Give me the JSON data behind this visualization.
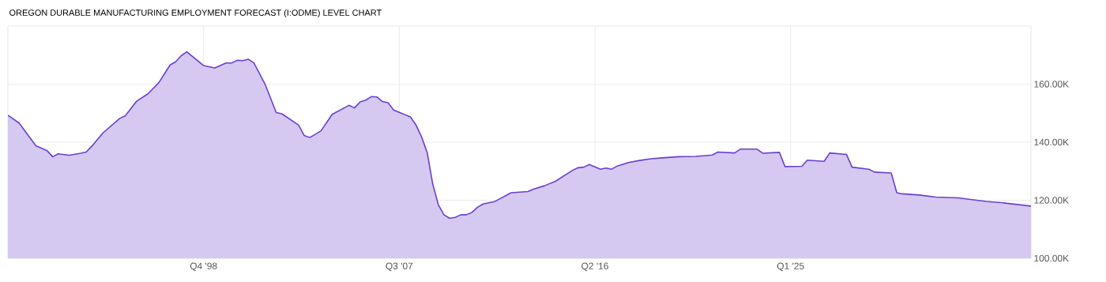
{
  "chart_data": {
    "type": "area",
    "title": "OREGON DURABLE MANUFACTURING EMPLOYMENT FORECAST (I:ODME) LEVEL CHART",
    "x": [
      "1990-01",
      "1990-07",
      "1991-04",
      "1991-10",
      "1992-01",
      "1992-04",
      "1992-10",
      "1993-04",
      "1993-07",
      "1993-10",
      "1994-04",
      "1995-01",
      "1995-04",
      "1995-10",
      "1996-04",
      "1996-10",
      "1997-04",
      "1997-07",
      "1997-10",
      "1998-01",
      "1998-10",
      "1999-04",
      "1999-10",
      "2000-01",
      "2000-04",
      "2000-07",
      "2000-10",
      "2001-01",
      "2001-07",
      "2002-01",
      "2002-04",
      "2003-01",
      "2003-04",
      "2003-07",
      "2004-01",
      "2004-07",
      "2005-04",
      "2005-07",
      "2005-10",
      "2006-01",
      "2006-04",
      "2006-07",
      "2006-10",
      "2007-01",
      "2007-04",
      "2007-07",
      "2008-01",
      "2008-04",
      "2008-07",
      "2008-10",
      "2009-01",
      "2009-04",
      "2009-07",
      "2009-10",
      "2010-01",
      "2010-04",
      "2010-07",
      "2010-10",
      "2011-01",
      "2011-04",
      "2011-10",
      "2012-07",
      "2013-04",
      "2013-07",
      "2014-01",
      "2014-07",
      "2015-01",
      "2015-04",
      "2015-07",
      "2015-10",
      "2016-01",
      "2016-07",
      "2016-10",
      "2017-01",
      "2017-04",
      "2017-10",
      "2018-04",
      "2018-10",
      "2019-04",
      "2020-01",
      "2020-10",
      "2021-07",
      "2021-10",
      "2022-07",
      "2022-10",
      "2023-07",
      "2023-10",
      "2024-07",
      "2024-10",
      "2025-07",
      "2025-10",
      "2026-07",
      "2026-10",
      "2027-07",
      "2027-10",
      "2028-07",
      "2028-10",
      "2029-07",
      "2029-10",
      "2030-01",
      "2030-10",
      "2031-07",
      "2032-07",
      "2033-10",
      "2034-07",
      "2035-10"
    ],
    "series": [
      {
        "color": "#6a3fd0",
        "values": [
          149300,
          146600,
          138800,
          137100,
          135000,
          136000,
          135500,
          136200,
          136600,
          138600,
          143200,
          148200,
          149100,
          154100,
          156600,
          160500,
          166600,
          167700,
          169800,
          171100,
          166400,
          165600,
          167300,
          167300,
          168200,
          168100,
          168600,
          167300,
          160000,
          150200,
          149800,
          145900,
          142300,
          141600,
          143900,
          149600,
          152700,
          151800,
          153900,
          154500,
          155700,
          155600,
          154000,
          153600,
          151100,
          150300,
          148700,
          145900,
          141800,
          136400,
          125500,
          118400,
          115000,
          113800,
          114100,
          115000,
          115000,
          115800,
          117600,
          118700,
          119500,
          122600,
          123000,
          123800,
          125000,
          126600,
          129100,
          130300,
          131200,
          131400,
          132300,
          130700,
          131100,
          130700,
          131800,
          133000,
          133700,
          134300,
          134600,
          135000,
          135100,
          135600,
          136600,
          136300,
          137600,
          137600,
          136200,
          136500,
          131600,
          131700,
          133800,
          133400,
          136300,
          135800,
          131400,
          130700,
          129700,
          129400,
          122600,
          122200,
          121800,
          121100,
          120800,
          119600,
          119100,
          118000
        ]
      }
    ],
    "xlim": [
      "1990-01",
      "2035-10"
    ],
    "xticks": [
      {
        "value": "1998-10",
        "label": "Q4 '98"
      },
      {
        "value": "2007-07",
        "label": "Q3 '07"
      },
      {
        "value": "2016-04",
        "label": "Q2 '16"
      },
      {
        "value": "2025-01",
        "label": "Q1 '25"
      }
    ],
    "ylim": [
      100000,
      180000
    ],
    "yticks": [
      {
        "value": 100000,
        "label": "100.00K"
      },
      {
        "value": 120000,
        "label": "120.00K"
      },
      {
        "value": 140000,
        "label": "140.00K"
      },
      {
        "value": 160000,
        "label": "160.00K"
      }
    ],
    "grid": true
  }
}
